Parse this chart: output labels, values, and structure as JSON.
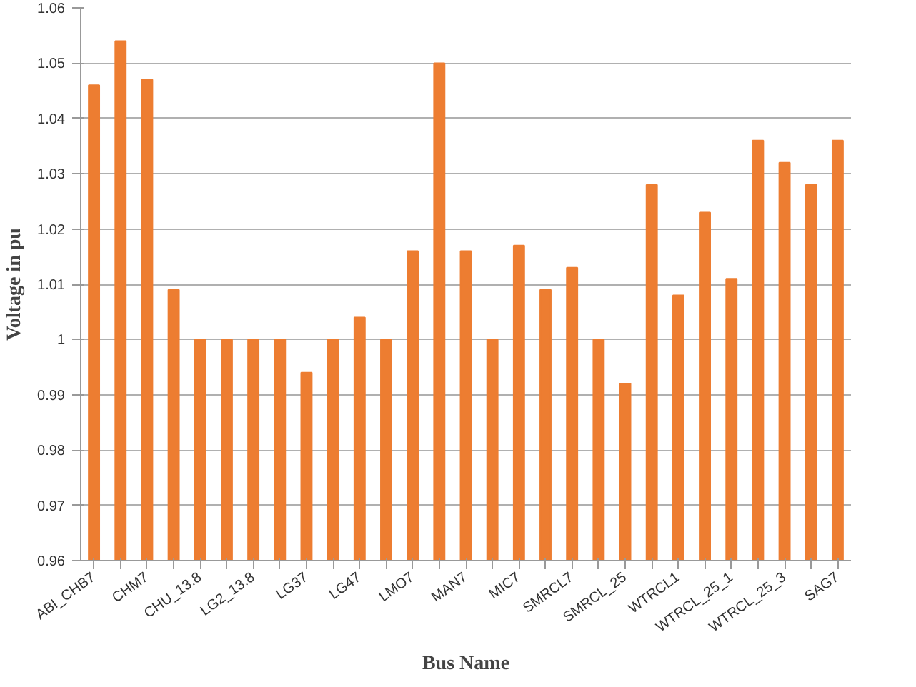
{
  "chart_data": {
    "type": "bar",
    "xlabel": "Bus Name",
    "ylabel": "Voltage in pu",
    "color": "#ed7d31",
    "categories": [
      "ABI_CHB7",
      null,
      "CHM7",
      null,
      "CHU_13.8",
      null,
      "LG2_13.8",
      null,
      "LG37",
      null,
      "LG47",
      null,
      "LMO7",
      null,
      "MAN7",
      null,
      "MIC7",
      null,
      "SMRCL7",
      null,
      "SMRCL_25",
      null,
      "WTRCL1",
      null,
      "WTRCL_25_1",
      null,
      "WTRCL_25_3",
      null,
      "SAG7"
    ],
    "values": [
      1.046,
      1.054,
      1.047,
      1.009,
      1.0,
      1.0,
      1.0,
      1.0,
      0.994,
      1.0,
      1.004,
      1.0,
      1.016,
      1.05,
      1.016,
      1.0,
      1.017,
      1.009,
      1.013,
      1.0,
      0.992,
      1.028,
      1.008,
      1.023,
      1.011,
      1.036,
      1.032,
      1.028,
      1.036
    ],
    "ylim": [
      0.96,
      1.06
    ],
    "yticks": [
      0.96,
      0.97,
      0.98,
      0.99,
      {
        "value": 1.0,
        "label": "1"
      },
      1.01,
      1.02,
      1.03,
      1.04,
      1.05,
      1.06
    ],
    "grid": "y"
  }
}
